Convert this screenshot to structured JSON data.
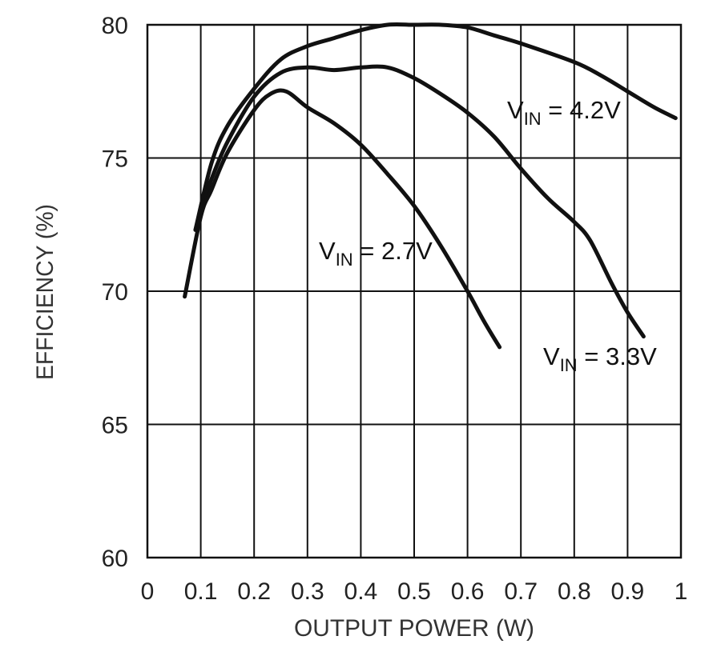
{
  "chart_data": {
    "type": "line",
    "xlabel": "OUTPUT POWER (W)",
    "ylabel": "EFFICIENCY (%)",
    "xlim": [
      0,
      1
    ],
    "ylim": [
      60,
      80
    ],
    "xticks": [
      0,
      0.1,
      0.2,
      0.3,
      0.4,
      0.5,
      0.6,
      0.7,
      0.8,
      0.9,
      1
    ],
    "xtick_labels": [
      "0",
      "0.1",
      "0.2",
      "0.3",
      "0.4",
      "0.5",
      "0.6",
      "0.7",
      "0.8",
      "0.9",
      "1"
    ],
    "yticks": [
      60,
      65,
      70,
      75,
      80
    ],
    "ytick_labels": [
      "60",
      "65",
      "70",
      "75",
      "80"
    ],
    "grid": true,
    "series": [
      {
        "name": "VIN = 4.2V",
        "label_main": "V",
        "label_sub": "IN",
        "label_rest": " = 4.2V",
        "points": [
          [
            0.09,
            72.3
          ],
          [
            0.12,
            74.8
          ],
          [
            0.15,
            76.2
          ],
          [
            0.2,
            77.6
          ],
          [
            0.25,
            78.7
          ],
          [
            0.3,
            79.2
          ],
          [
            0.35,
            79.5
          ],
          [
            0.4,
            79.8
          ],
          [
            0.45,
            80.0
          ],
          [
            0.5,
            80.0
          ],
          [
            0.55,
            80.0
          ],
          [
            0.6,
            79.9
          ],
          [
            0.65,
            79.6
          ],
          [
            0.7,
            79.3
          ],
          [
            0.8,
            78.6
          ],
          [
            0.85,
            78.1
          ],
          [
            0.9,
            77.5
          ],
          [
            0.95,
            76.9
          ],
          [
            0.99,
            76.5
          ]
        ]
      },
      {
        "name": "VIN = 3.3V",
        "label_main": "V",
        "label_sub": "IN",
        "label_rest": " = 3.3V",
        "points": [
          [
            0.1,
            73.0
          ],
          [
            0.12,
            74.2
          ],
          [
            0.15,
            75.6
          ],
          [
            0.2,
            77.3
          ],
          [
            0.25,
            78.2
          ],
          [
            0.3,
            78.4
          ],
          [
            0.35,
            78.3
          ],
          [
            0.4,
            78.4
          ],
          [
            0.45,
            78.4
          ],
          [
            0.5,
            78.0
          ],
          [
            0.55,
            77.4
          ],
          [
            0.6,
            76.7
          ],
          [
            0.65,
            75.8
          ],
          [
            0.7,
            74.6
          ],
          [
            0.75,
            73.5
          ],
          [
            0.8,
            72.6
          ],
          [
            0.83,
            71.9
          ],
          [
            0.87,
            70.3
          ],
          [
            0.9,
            69.2
          ],
          [
            0.93,
            68.3
          ]
        ]
      },
      {
        "name": "VIN = 2.7V",
        "label_main": "V",
        "label_sub": "IN",
        "label_rest": " = 2.7V",
        "points": [
          [
            0.07,
            69.8
          ],
          [
            0.1,
            72.8
          ],
          [
            0.12,
            73.8
          ],
          [
            0.15,
            75.2
          ],
          [
            0.2,
            76.8
          ],
          [
            0.23,
            77.4
          ],
          [
            0.26,
            77.5
          ],
          [
            0.3,
            76.9
          ],
          [
            0.35,
            76.3
          ],
          [
            0.4,
            75.5
          ],
          [
            0.45,
            74.4
          ],
          [
            0.5,
            73.2
          ],
          [
            0.55,
            71.7
          ],
          [
            0.6,
            70.0
          ],
          [
            0.63,
            68.9
          ],
          [
            0.66,
            67.9
          ]
        ]
      }
    ]
  }
}
